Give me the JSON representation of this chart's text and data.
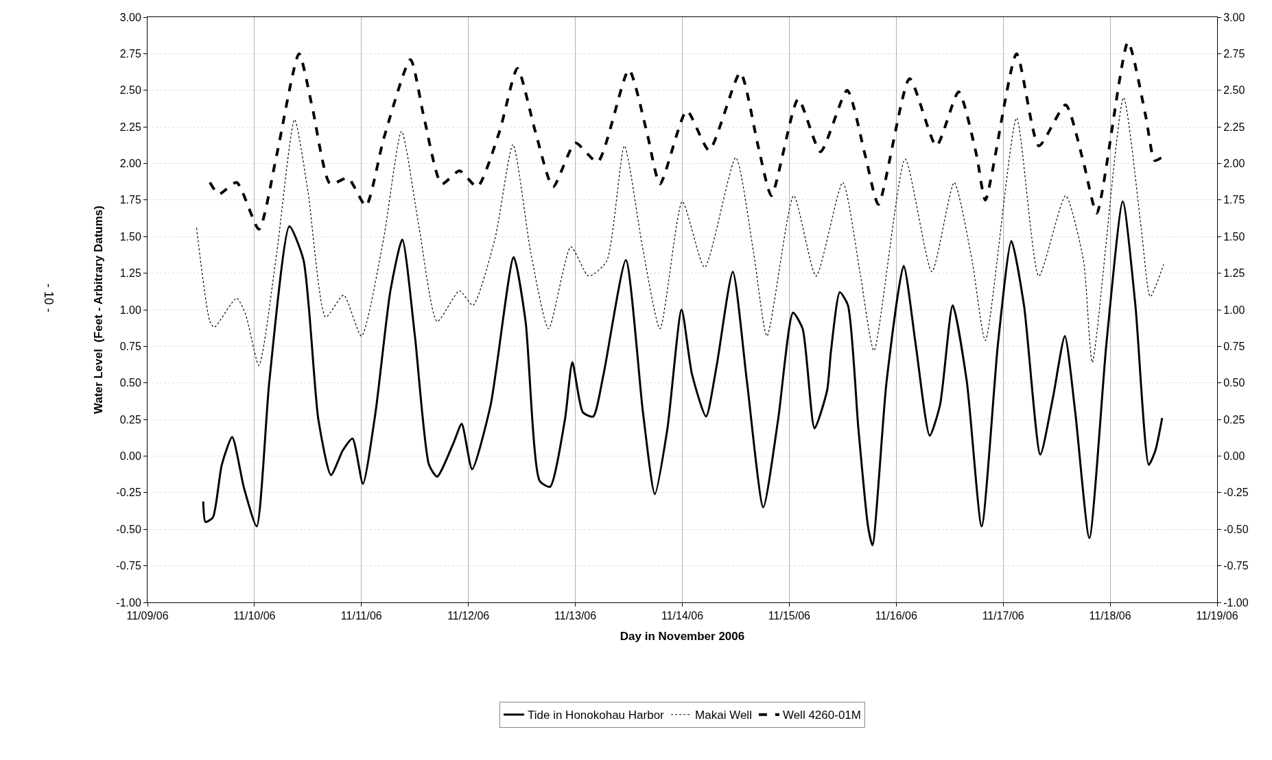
{
  "chart_data": {
    "type": "line",
    "xlabel": "Day in November 2006",
    "ylabel": "Water Level  (Feet - Arbitrary Datums)",
    "annotations": [
      "- 10 -"
    ],
    "xlim": [
      "2006-11-09",
      "2006-11-19"
    ],
    "xticks": [
      {
        "value": "2006-11-09",
        "label": "11/09/06"
      },
      {
        "value": "2006-11-10",
        "label": "11/10/06"
      },
      {
        "value": "2006-11-11",
        "label": "11/11/06"
      },
      {
        "value": "2006-11-12",
        "label": "11/12/06"
      },
      {
        "value": "2006-11-13",
        "label": "11/13/06"
      },
      {
        "value": "2006-11-14",
        "label": "11/14/06"
      },
      {
        "value": "2006-11-15",
        "label": "11/15/06"
      },
      {
        "value": "2006-11-16",
        "label": "11/16/06"
      },
      {
        "value": "2006-11-17",
        "label": "11/17/06"
      },
      {
        "value": "2006-11-18",
        "label": "11/18/06"
      },
      {
        "value": "2006-11-19",
        "label": "11/19/06"
      }
    ],
    "ylim": [
      -1,
      3
    ],
    "yticks": [
      {
        "value": -1,
        "label": "-1.00"
      },
      {
        "value": -0.75,
        "label": "-0.75"
      },
      {
        "value": -0.5,
        "label": "-0.50"
      },
      {
        "value": -0.25,
        "label": "-0.25"
      },
      {
        "value": 0,
        "label": "0.00"
      },
      {
        "value": 0.25,
        "label": "0.25"
      },
      {
        "value": 0.5,
        "label": "0.50"
      },
      {
        "value": 0.75,
        "label": "0.75"
      },
      {
        "value": 1,
        "label": "1.00"
      },
      {
        "value": 1.25,
        "label": "1.25"
      },
      {
        "value": 1.5,
        "label": "1.50"
      },
      {
        "value": 1.75,
        "label": "1.75"
      },
      {
        "value": 2,
        "label": "2.00"
      },
      {
        "value": 2.25,
        "label": "2.25"
      },
      {
        "value": 2.5,
        "label": "2.50"
      },
      {
        "value": 2.75,
        "label": "2.75"
      },
      {
        "value": 3,
        "label": "3.00"
      }
    ],
    "y2lim": [
      -1,
      3
    ],
    "y2ticks": [
      {
        "value": -1,
        "label": "-1.00"
      },
      {
        "value": -0.75,
        "label": "-0.75"
      },
      {
        "value": -0.5,
        "label": "-0.50"
      },
      {
        "value": -0.25,
        "label": "-0.25"
      },
      {
        "value": 0,
        "label": "0.00"
      },
      {
        "value": 0.25,
        "label": "0.25"
      },
      {
        "value": 0.5,
        "label": "0.50"
      },
      {
        "value": 0.75,
        "label": "0.75"
      },
      {
        "value": 1,
        "label": "1.00"
      },
      {
        "value": 1.25,
        "label": "1.25"
      },
      {
        "value": 1.5,
        "label": "1.50"
      },
      {
        "value": 1.75,
        "label": "1.75"
      },
      {
        "value": 2,
        "label": "2.00"
      },
      {
        "value": 2.25,
        "label": "2.25"
      },
      {
        "value": 2.5,
        "label": "2.50"
      },
      {
        "value": 2.75,
        "label": "2.75"
      },
      {
        "value": 3,
        "label": "3.00"
      }
    ],
    "grid": true,
    "legend": "bottom",
    "marker": "none",
    "series": [
      {
        "name": "Tide in Honokohau Harbor",
        "color": "#000000",
        "line_style": "solid",
        "x": [
          "2006-11-09T12:30",
          "2006-11-09T13:00",
          "2006-11-09T14:40",
          "2006-11-09T16:40",
          "2006-11-09T19:00",
          "2006-11-09T21:40",
          "2006-11-10T00:30",
          "2006-11-10T03:20",
          "2006-11-10T07:50",
          "2006-11-10T11:00",
          "2006-11-10T14:20",
          "2006-11-10T17:10",
          "2006-11-10T19:50",
          "2006-11-10T22:00",
          "2006-11-11T00:20",
          "2006-11-11T03:10",
          "2006-11-11T06:30",
          "2006-11-11T09:10",
          "2006-11-11T12:00",
          "2006-11-11T15:10",
          "2006-11-11T17:00",
          "2006-11-11T20:40",
          "2006-11-11T22:30",
          "2006-11-12T00:50",
          "2006-11-12T05:00",
          "2006-11-12T10:10",
          "2006-11-12T12:50",
          "2006-11-12T16:00",
          "2006-11-12T18:20",
          "2006-11-12T21:40",
          "2006-11-12T23:20",
          "2006-11-13T01:40",
          "2006-11-13T04:00",
          "2006-11-13T06:20",
          "2006-11-13T11:20",
          "2006-11-13T15:10",
          "2006-11-13T17:50",
          "2006-11-13T20:40",
          "2006-11-13T23:50",
          "2006-11-14T02:10",
          "2006-11-14T05:20",
          "2006-11-14T07:40",
          "2006-11-14T11:20",
          "2006-11-14T14:30",
          "2006-11-14T18:10",
          "2006-11-14T21:30",
          "2006-11-15T00:50",
          "2006-11-15T03:00",
          "2006-11-15T05:40",
          "2006-11-15T08:30",
          "2006-11-15T09:20",
          "2006-11-15T11:20",
          "2006-11-15T13:10",
          "2006-11-15T15:30",
          "2006-11-15T17:40",
          "2006-11-15T18:40",
          "2006-11-15T21:50",
          "2006-11-16T01:40",
          "2006-11-16T04:20",
          "2006-11-16T07:30",
          "2006-11-16T09:50",
          "2006-11-16T12:40",
          "2006-11-16T15:50",
          "2006-11-16T19:10",
          "2006-11-16T22:50",
          "2006-11-17T01:50",
          "2006-11-17T04:40",
          "2006-11-17T08:20",
          "2006-11-17T11:10",
          "2006-11-17T13:50",
          "2006-11-17T16:10",
          "2006-11-17T19:20",
          "2006-11-17T23:10",
          "2006-11-18T02:50",
          "2006-11-18T05:40",
          "2006-11-18T08:40",
          "2006-11-18T10:10",
          "2006-11-18T11:40"
        ],
        "values": [
          -0.31,
          -0.45,
          -0.42,
          -0.06,
          0.13,
          -0.22,
          -0.48,
          0.51,
          1.57,
          1.34,
          0.25,
          -0.13,
          0.04,
          0.12,
          -0.19,
          0.3,
          1.13,
          1.48,
          0.82,
          -0.06,
          -0.14,
          0.09,
          0.22,
          -0.09,
          0.35,
          1.36,
          0.92,
          -0.17,
          -0.21,
          0.25,
          0.64,
          0.3,
          0.27,
          0.56,
          1.34,
          0.3,
          -0.26,
          0.19,
          1.0,
          0.56,
          0.27,
          0.61,
          1.26,
          0.51,
          -0.35,
          0.25,
          0.98,
          0.87,
          0.19,
          0.45,
          0.71,
          1.12,
          1.03,
          0.19,
          -0.48,
          -0.61,
          0.51,
          1.3,
          0.77,
          0.14,
          0.35,
          1.03,
          0.51,
          -0.48,
          0.77,
          1.47,
          1.03,
          0.01,
          0.4,
          0.82,
          0.3,
          -0.56,
          0.77,
          1.74,
          1.03,
          -0.06,
          0.04,
          0.26
        ]
      },
      {
        "name": "Makai Well",
        "color": "#000000",
        "line_style": "dotted",
        "x": [
          "2006-11-09T11:00",
          "2006-11-09T14:00",
          "2006-11-09T15:00",
          "2006-11-09T20:00",
          "2006-11-09T22:00",
          "2006-11-10T01:00",
          "2006-11-10T05:00",
          "2006-11-10T09:00",
          "2006-11-10T12:00",
          "2006-11-10T16:00",
          "2006-11-10T20:00",
          "2006-11-11T00:00",
          "2006-11-11T05:00",
          "2006-11-11T09:00",
          "2006-11-11T13:00",
          "2006-11-11T17:00",
          "2006-11-11T22:00",
          "2006-11-12T01:00",
          "2006-11-12T06:00",
          "2006-11-12T10:00",
          "2006-11-12T14:00",
          "2006-11-12T18:00",
          "2006-11-12T23:00",
          "2006-11-13T03:00",
          "2006-11-13T07:00",
          "2006-11-13T11:00",
          "2006-11-13T15:00",
          "2006-11-13T19:00",
          "2006-11-14T00:00",
          "2006-11-14T05:00",
          "2006-11-14T12:00",
          "2006-11-14T16:00",
          "2006-11-14T19:00",
          "2006-11-15T01:00",
          "2006-11-15T06:00",
          "2006-11-15T12:00",
          "2006-11-15T16:00",
          "2006-11-15T19:00",
          "2006-11-16T02:00",
          "2006-11-16T08:00",
          "2006-11-16T13:00",
          "2006-11-16T17:00",
          "2006-11-16T20:00",
          "2006-11-17T03:00",
          "2006-11-17T08:00",
          "2006-11-17T14:00",
          "2006-11-17T18:00",
          "2006-11-17T20:00",
          "2006-11-18T03:00",
          "2006-11-18T07:00",
          "2006-11-18T09:00",
          "2006-11-18T12:00"
        ],
        "values": [
          1.56,
          0.92,
          0.88,
          1.08,
          0.97,
          0.62,
          1.39,
          2.3,
          1.81,
          0.95,
          1.1,
          0.82,
          1.49,
          2.22,
          1.55,
          0.92,
          1.13,
          1.03,
          1.49,
          2.13,
          1.39,
          0.87,
          1.43,
          1.23,
          1.33,
          2.12,
          1.44,
          0.87,
          1.74,
          1.29,
          2.04,
          1.39,
          0.82,
          1.78,
          1.23,
          1.87,
          1.23,
          0.72,
          2.03,
          1.26,
          1.87,
          1.34,
          0.79,
          2.31,
          1.23,
          1.78,
          1.34,
          0.64,
          2.45,
          1.55,
          1.09,
          1.31
        ]
      },
      {
        "name": "Well 4260-01M",
        "color": "#000000",
        "line_style": "dashed",
        "x": [
          "2006-11-09T14:00",
          "2006-11-09T16:00",
          "2006-11-09T20:00",
          "2006-11-10T01:00",
          "2006-11-10T05:00",
          "2006-11-10T10:00",
          "2006-11-10T13:00",
          "2006-11-10T17:00",
          "2006-11-10T21:00",
          "2006-11-11T01:00",
          "2006-11-11T05:00",
          "2006-11-11T11:00",
          "2006-11-11T14:00",
          "2006-11-11T18:00",
          "2006-11-11T22:00",
          "2006-11-12T02:00",
          "2006-11-12T07:00",
          "2006-11-12T11:00",
          "2006-11-12T15:00",
          "2006-11-12T19:00",
          "2006-11-13T00:00",
          "2006-11-13T05:00",
          "2006-11-13T12:00",
          "2006-11-13T16:00",
          "2006-11-13T19:00",
          "2006-11-14T01:00",
          "2006-11-14T06:00",
          "2006-11-14T13:00",
          "2006-11-14T17:00",
          "2006-11-14T20:00",
          "2006-11-15T02:00",
          "2006-11-15T07:00",
          "2006-11-15T13:00",
          "2006-11-15T17:00",
          "2006-11-15T20:00",
          "2006-11-16T03:00",
          "2006-11-16T09:00",
          "2006-11-16T14:00",
          "2006-11-16T18:00",
          "2006-11-16T20:00",
          "2006-11-17T03:00",
          "2006-11-17T08:00",
          "2006-11-17T14:00",
          "2006-11-17T18:00",
          "2006-11-17T21:00",
          "2006-11-18T04:00",
          "2006-11-18T08:00",
          "2006-11-18T10:00",
          "2006-11-18T12:00"
        ],
        "values": [
          1.87,
          1.79,
          1.87,
          1.55,
          2.06,
          2.75,
          2.38,
          1.86,
          1.9,
          1.71,
          2.17,
          2.71,
          2.32,
          1.86,
          1.95,
          1.84,
          2.22,
          2.65,
          2.22,
          1.84,
          2.14,
          2.01,
          2.64,
          2.22,
          1.86,
          2.36,
          2.09,
          2.62,
          2.12,
          1.78,
          2.44,
          2.08,
          2.5,
          2.06,
          1.72,
          2.58,
          2.12,
          2.49,
          2.06,
          1.75,
          2.75,
          2.12,
          2.4,
          2.01,
          1.66,
          2.83,
          2.32,
          2.02,
          2.05
        ]
      }
    ]
  }
}
